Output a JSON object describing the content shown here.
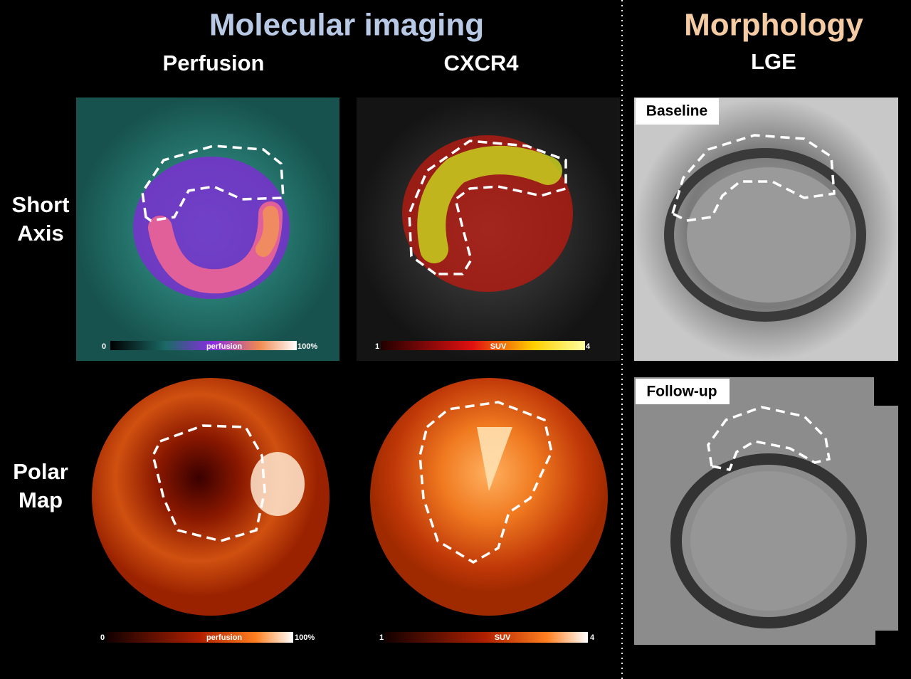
{
  "header": {
    "left_title": "Molecular imaging",
    "right_title": "Morphology"
  },
  "columns": [
    "Perfusion",
    "CXCR4",
    "LGE"
  ],
  "rows": [
    {
      "label_lines": [
        "Short",
        "Axis"
      ]
    },
    {
      "label_lines": [
        "Polar",
        "Map"
      ]
    }
  ],
  "panels": {
    "lge_baseline": "Baseline",
    "lge_follow_up": "Follow-up"
  },
  "colorbars": [
    {
      "min": "0",
      "label": "perfusion",
      "max": "100%"
    },
    {
      "min": "1",
      "label": "SUV",
      "max": "4"
    },
    {
      "min": "0",
      "label": "perfusion",
      "max": "100%"
    },
    {
      "min": "1",
      "label": "SUV",
      "max": "4"
    }
  ]
}
